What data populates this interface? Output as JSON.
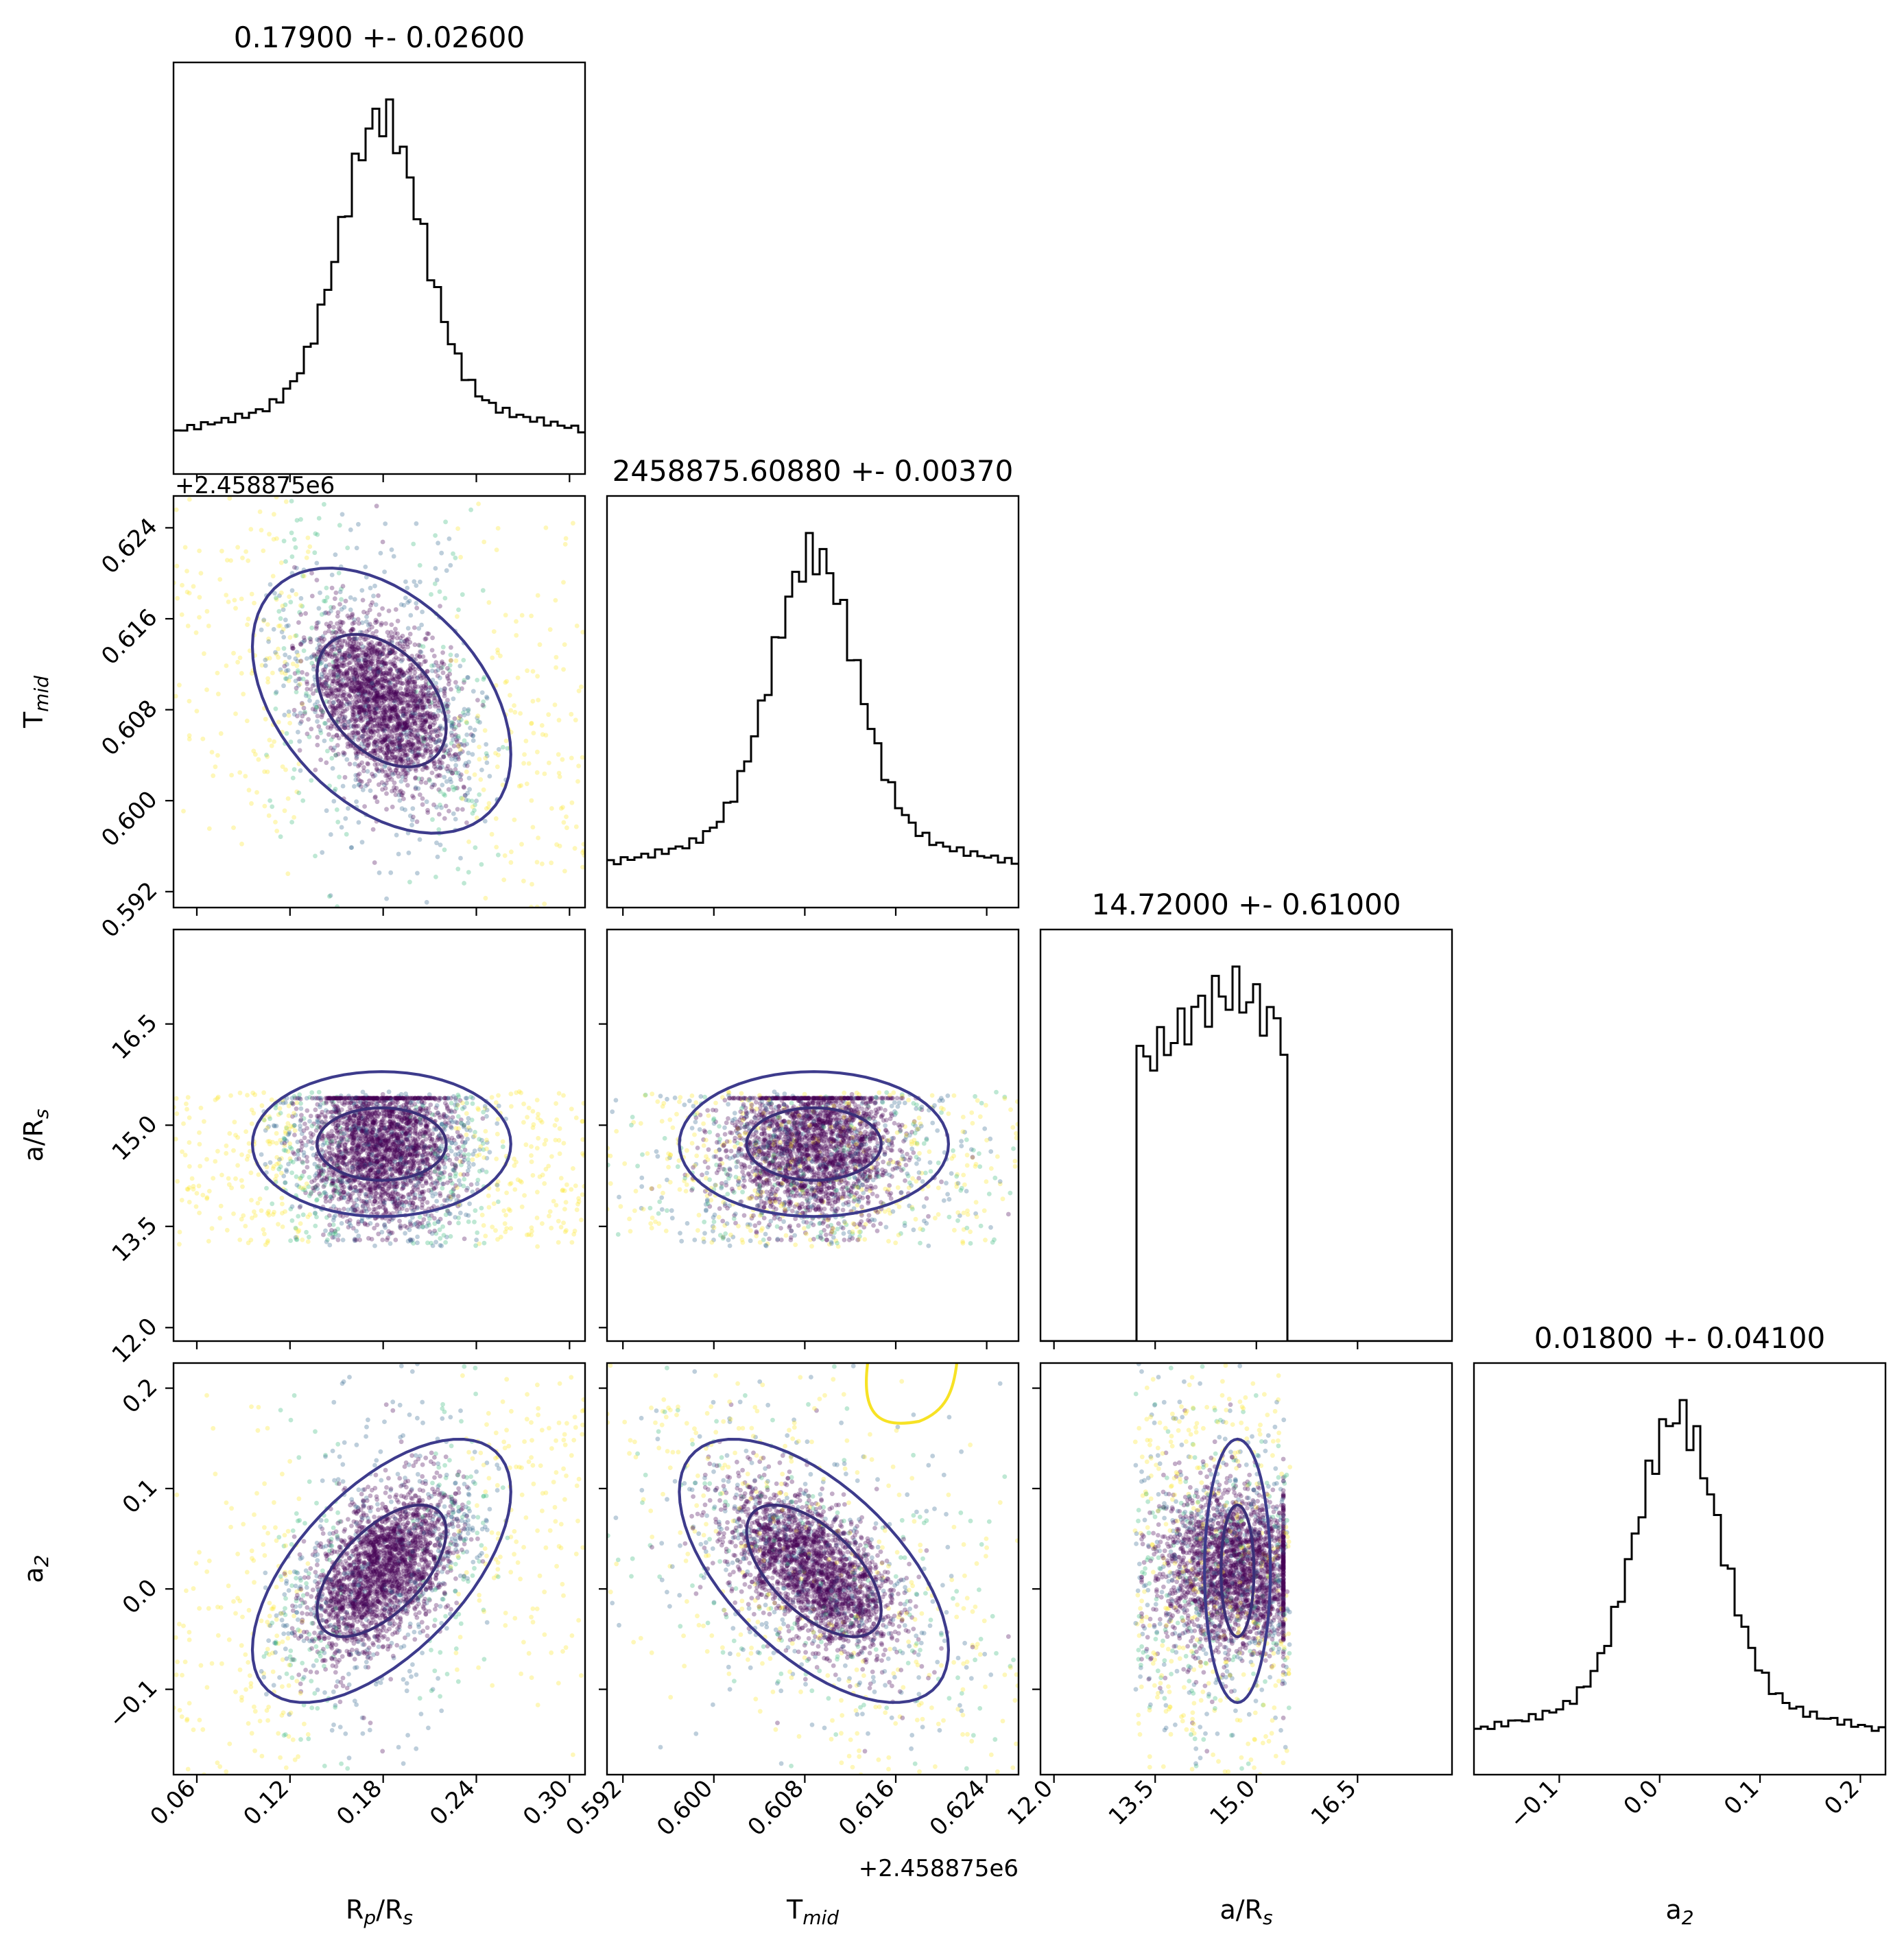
{
  "chart_data": {
    "type": "corner",
    "parameters": [
      {
        "key": "rp",
        "label": "R",
        "sub": "p",
        "label_suffix": "/R",
        "suffix_sub": "s",
        "range": [
          0.045,
          0.31
        ],
        "ticks": [
          "0.06",
          "0.12",
          "0.18",
          "0.24",
          "0.30"
        ],
        "tick_values": [
          0.06,
          0.12,
          0.18,
          0.24,
          0.3
        ],
        "mean": 0.179,
        "sigma": 0.026
      },
      {
        "key": "tmid",
        "label": "T",
        "sub": "mid",
        "label_suffix": "",
        "suffix_sub": "",
        "range": [
          0.5906,
          0.6268
        ],
        "ticks": [
          "0.592",
          "0.600",
          "0.608",
          "0.616",
          "0.624"
        ],
        "tick_values": [
          0.592,
          0.6,
          0.608,
          0.616,
          0.624
        ],
        "mean": 0.6088,
        "sigma": 0.0037,
        "offset_text": "+2.458875e6"
      },
      {
        "key": "ars",
        "label": "a/R",
        "sub": "s",
        "label_suffix": "",
        "suffix_sub": "",
        "range": [
          11.8,
          17.9
        ],
        "ticks": [
          "12.0",
          "13.5",
          "15.0",
          "16.5"
        ],
        "tick_values": [
          12.0,
          13.5,
          15.0,
          16.5
        ],
        "mean": 14.72,
        "sigma": 0.61
      },
      {
        "key": "a2",
        "label": "a",
        "sub": "2",
        "label_suffix": "",
        "suffix_sub": "",
        "range": [
          -0.185,
          0.225
        ],
        "ticks": [
          "−0.1",
          "0.0",
          "0.1",
          "0.2"
        ],
        "tick_values": [
          -0.1,
          0.0,
          0.1,
          0.2
        ],
        "mean": 0.018,
        "sigma": 0.041
      }
    ],
    "titles": [
      "0.17900 +- 0.02600",
      "2458875.60880 +- 0.00370",
      "14.72000 +- 0.61000",
      "0.01800 +- 0.04100"
    ],
    "offset_text": "+2.458875e6",
    "colors": {
      "axis": "#000000",
      "histogram": "#000000",
      "contour_inner": "#3b2f78",
      "contour_outer": "#3d3b8c",
      "contour_yellow": "#f7e225",
      "point_core": "#440154",
      "point_mid": "#31688e",
      "point_teal": "#35b779",
      "point_yellow": "#fde725"
    }
  }
}
